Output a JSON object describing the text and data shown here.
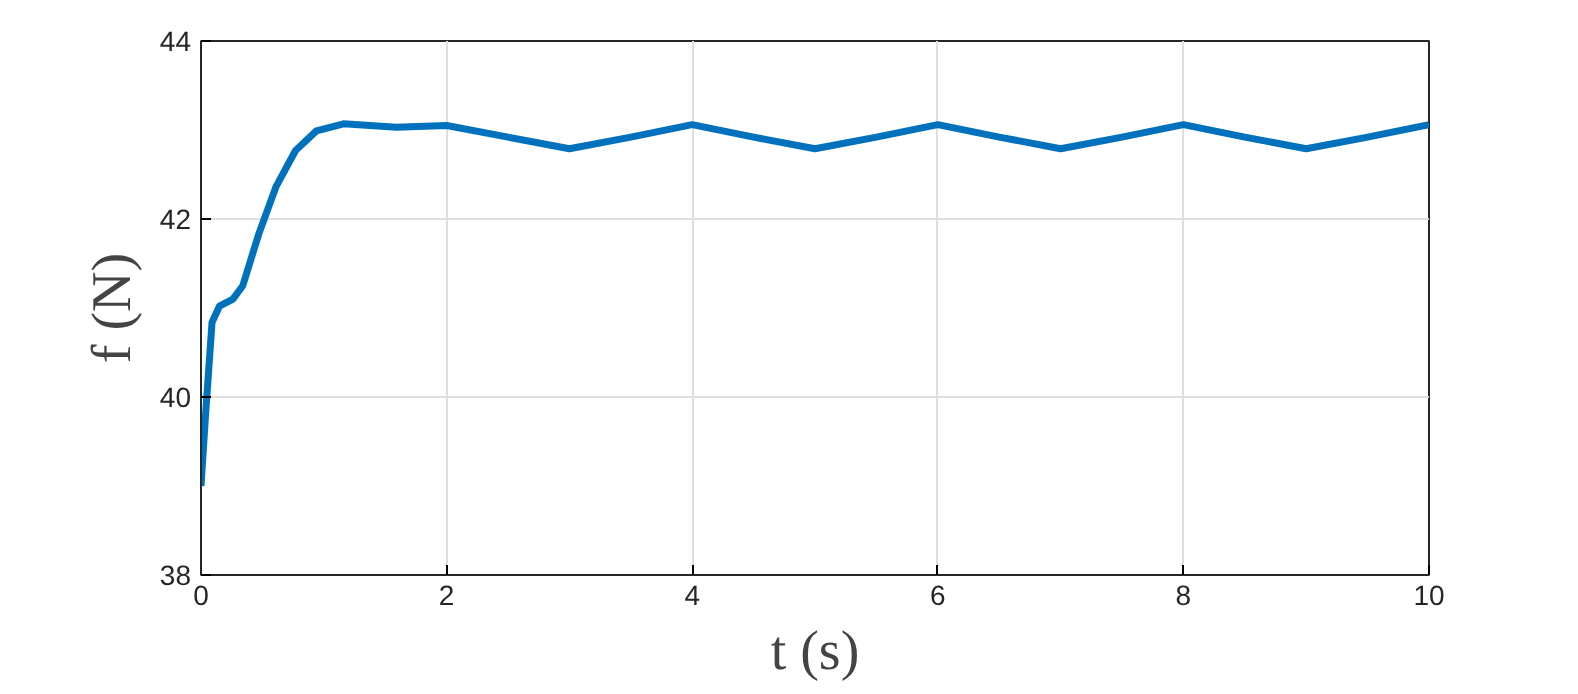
{
  "chart_data": {
    "type": "line",
    "xlabel": "t (s)",
    "ylabel": "f (N)",
    "xlim": [
      0,
      10
    ],
    "ylim": [
      38,
      44
    ],
    "xticks": [
      0,
      2,
      4,
      6,
      8,
      10
    ],
    "yticks": [
      38,
      40,
      42,
      44
    ],
    "grid": true,
    "series": [
      {
        "color": "#0072bd",
        "x": [
          0,
          0.04,
          0.09,
          0.15,
          0.26,
          0.34,
          0.47,
          0.61,
          0.77,
          0.94,
          1.16,
          1.59,
          2.0,
          2.5,
          3.0,
          3.5,
          4.0,
          4.5,
          5.0,
          5.5,
          6.0,
          6.5,
          7.0,
          7.5,
          8.0,
          8.5,
          9.0,
          9.5,
          10.0
        ],
        "values": [
          39.0,
          39.86,
          40.84,
          41.02,
          41.1,
          41.25,
          41.83,
          42.36,
          42.77,
          42.99,
          43.07,
          43.03,
          43.05,
          42.92,
          42.79,
          42.92,
          43.06,
          42.92,
          42.79,
          42.92,
          43.06,
          42.92,
          42.79,
          42.92,
          43.06,
          42.92,
          42.79,
          42.92,
          43.06
        ]
      }
    ]
  }
}
